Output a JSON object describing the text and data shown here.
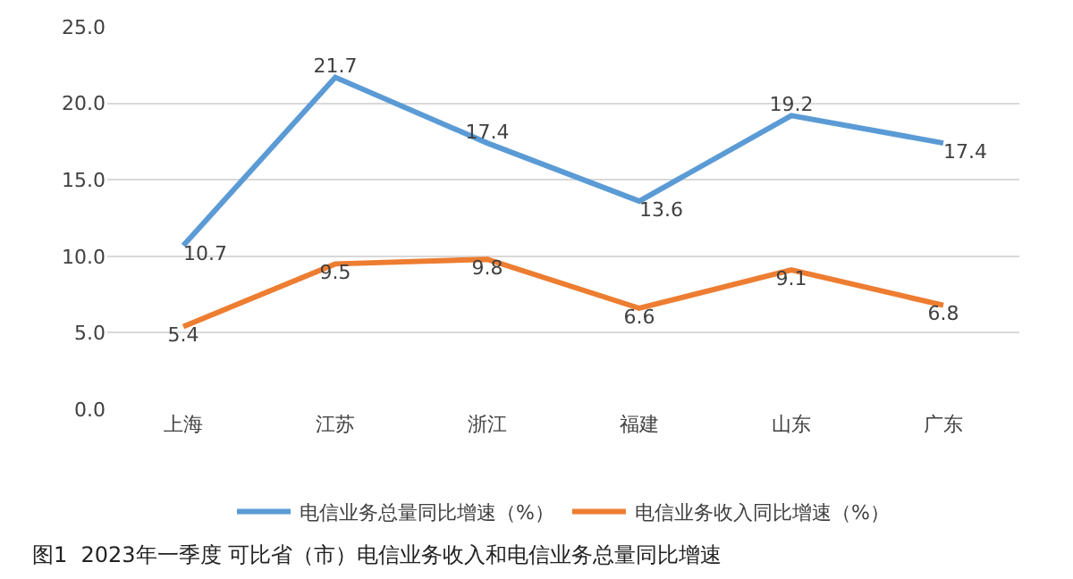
{
  "chart_data": {
    "type": "line",
    "title": "图1  2023年一季度 可比省（市）电信业务收入和电信业务总量同比增速",
    "categories": [
      "上海",
      "江苏",
      "浙江",
      "福建",
      "山东",
      "广东"
    ],
    "series": [
      {
        "name": "电信业务总量同比增速（%）",
        "color": "#5b9bd5",
        "values": [
          10.7,
          21.7,
          17.4,
          13.6,
          19.2,
          17.4
        ]
      },
      {
        "name": "电信业务收入同比增速（%）",
        "color": "#ed7d31",
        "values": [
          5.4,
          9.5,
          9.8,
          6.6,
          9.1,
          6.8
        ]
      }
    ],
    "ylim": [
      0,
      25
    ],
    "yticks": [
      {
        "value": 0,
        "label": "0.0"
      },
      {
        "value": 5,
        "label": "5.0"
      },
      {
        "value": 10,
        "label": "10.0"
      },
      {
        "value": 15,
        "label": "15.0"
      },
      {
        "value": 20,
        "label": "20.0"
      },
      {
        "value": 25,
        "label": "25.0"
      }
    ],
    "grid": "y",
    "legend": "bottom",
    "data_labels": true,
    "marker": "none",
    "line_style": "solid"
  }
}
